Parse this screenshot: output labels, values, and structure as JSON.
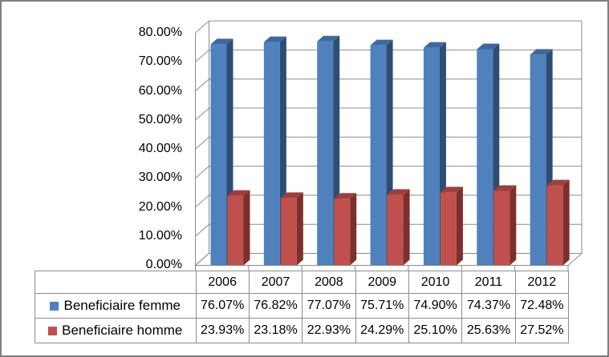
{
  "window": {
    "background": "#FFFFFF",
    "border_color": "#7F7F7F"
  },
  "chart_data": {
    "type": "bar",
    "style": "3d-clustered-column",
    "title": "",
    "xlabel": "",
    "ylabel": "",
    "categories": [
      "2006",
      "2007",
      "2008",
      "2009",
      "2010",
      "2011",
      "2012"
    ],
    "series": [
      {
        "id": "femme",
        "name": "Beneficiaire femme",
        "color": "#4F81BD",
        "color_top": "#3E689D",
        "color_side": "#2E4D75",
        "values": [
          76.07,
          76.82,
          77.07,
          75.71,
          74.9,
          74.37,
          72.48
        ],
        "value_labels": [
          "76.07%",
          "76.82%",
          "77.07%",
          "75.71%",
          "74.90%",
          "74.37%",
          "72.48%"
        ]
      },
      {
        "id": "homme",
        "name": "Beneficiaire homme",
        "color": "#C0504D",
        "color_top": "#9E3F3D",
        "color_side": "#7E2F2D",
        "values": [
          23.93,
          23.18,
          22.93,
          24.29,
          25.1,
          25.63,
          27.52
        ],
        "value_labels": [
          "23.93%",
          "23.18%",
          "22.93%",
          "24.29%",
          "25.10%",
          "25.63%",
          "27.52%"
        ]
      }
    ],
    "y_axis": {
      "min": 0,
      "max": 80,
      "step": 10,
      "tick_labels": [
        "0.00%",
        "10.00%",
        "20.00%",
        "30.00%",
        "40.00%",
        "50.00%",
        "60.00%",
        "70.00%",
        "80.00%"
      ]
    },
    "grid": true,
    "gridline_color": "#8C8C8C",
    "legend_position": "table-left"
  }
}
